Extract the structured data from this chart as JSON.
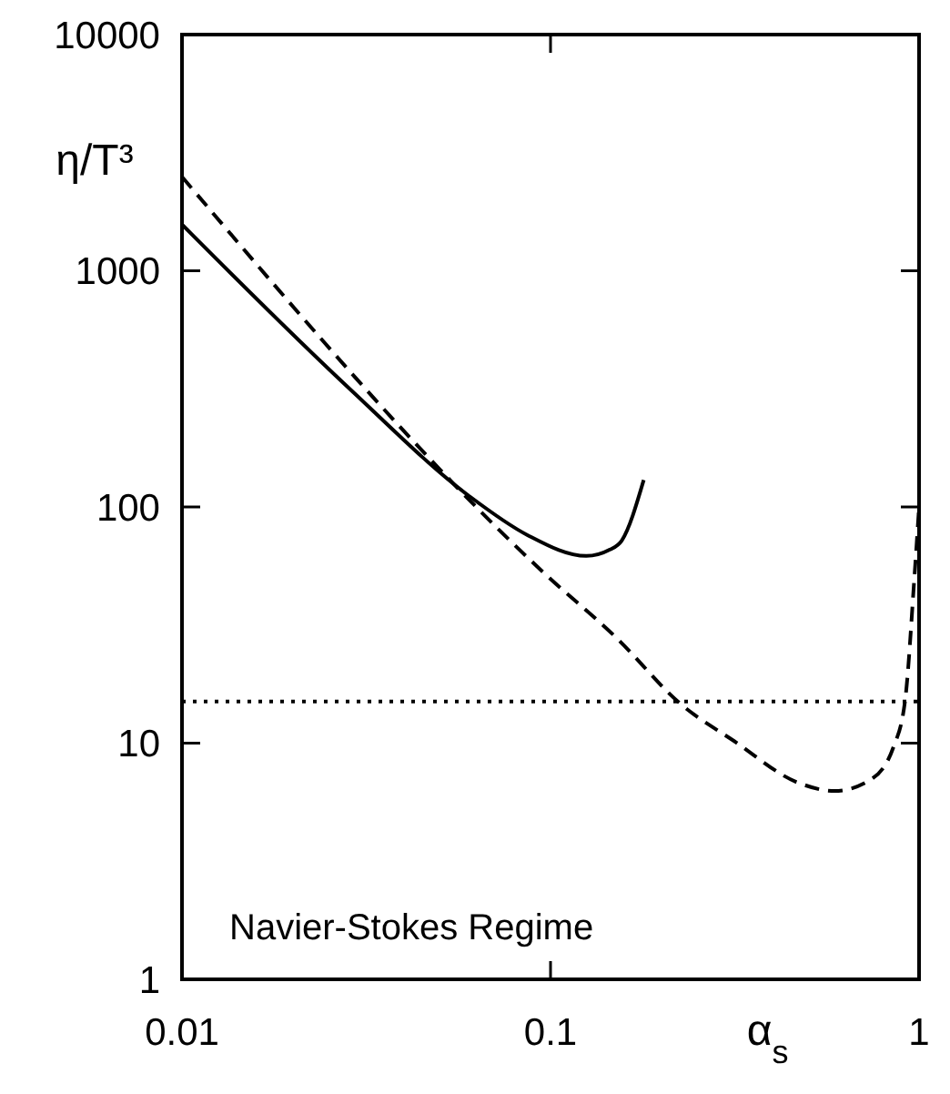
{
  "chart_data": {
    "type": "line",
    "ylabel": "η/T³",
    "xlabel": "α$_{s}$",
    "log": "xy",
    "xlim": [
      0.01,
      1
    ],
    "ylim": [
      1,
      10000
    ],
    "xticks": [
      0.01,
      0.1,
      1
    ],
    "yticks": [
      1,
      10,
      100,
      1000,
      10000
    ],
    "grid": false,
    "marker": "none",
    "series": [
      {
        "color": "#000000",
        "line_style": "solid",
        "x": [
          0.01,
          0.0286,
          0.0598,
          0.0866,
          0.125,
          0.145,
          0.156,
          0.179
        ],
        "values": [
          1570,
          315,
          112,
          76,
          62,
          66,
          72,
          130
        ]
      },
      {
        "color": "#000000",
        "line_style": "dashed",
        "x": [
          0.01,
          0.0967,
          0.151,
          0.226,
          0.315,
          0.472,
          0.59,
          0.736,
          0.853,
          0.918,
          0.971,
          1
        ],
        "values": [
          2500,
          52,
          27.9,
          14.6,
          10.2,
          6.78,
          6.27,
          6.98,
          9.66,
          15.5,
          50,
          100
        ]
      }
    ],
    "ref_lines": [
      {
        "axis": "y",
        "value": 15,
        "line_style": "dotted",
        "color": "#000000"
      }
    ],
    "annotations": [
      "Navier-Stokes Regime"
    ]
  }
}
